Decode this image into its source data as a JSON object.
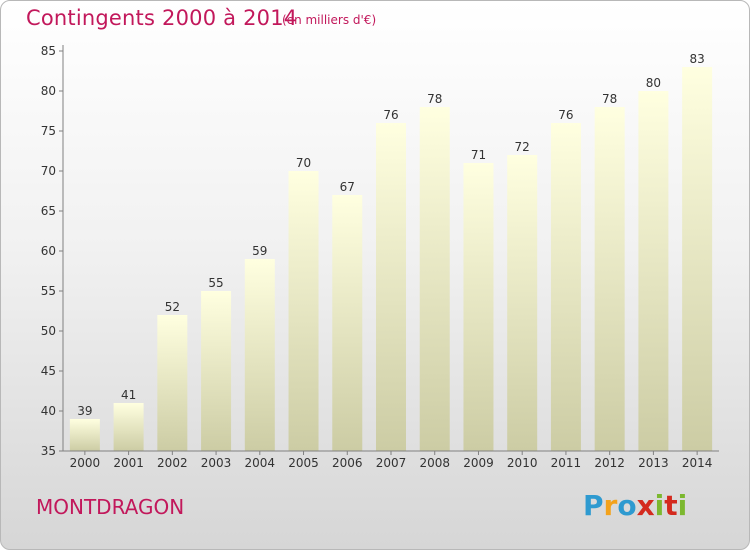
{
  "title": "Contingents 2000 à 2014",
  "subtitle": "(en milliers d'€)",
  "commune": "MONTDRAGON",
  "logo": {
    "letters": [
      "P",
      "r",
      "o",
      "x",
      "i",
      "t",
      "i"
    ],
    "colors": [
      "#2e9ad0",
      "#f3a21b",
      "#2e9ad0",
      "#d42a1e",
      "#7cb82f",
      "#d42a1e",
      "#7cb82f"
    ]
  },
  "colors": {
    "accent": "#c2185b",
    "bar_top": "#ffffe0",
    "bar_bottom": "#cccca4",
    "axis": "#808080"
  },
  "chart_data": {
    "type": "bar",
    "title": "Contingents 2000 à 2014",
    "subtitle": "(en milliers d'€)",
    "categories": [
      "2000",
      "2001",
      "2002",
      "2003",
      "2004",
      "2005",
      "2006",
      "2007",
      "2008",
      "2009",
      "2010",
      "2011",
      "2012",
      "2013",
      "2014"
    ],
    "values": [
      39,
      41,
      52,
      55,
      59,
      70,
      67,
      76,
      78,
      71,
      72,
      76,
      78,
      80,
      83
    ],
    "ylim": [
      35,
      85
    ],
    "yticks": [
      35,
      40,
      45,
      50,
      55,
      60,
      65,
      70,
      75,
      80,
      85
    ],
    "grid": false,
    "xlabel": "",
    "ylabel": ""
  }
}
